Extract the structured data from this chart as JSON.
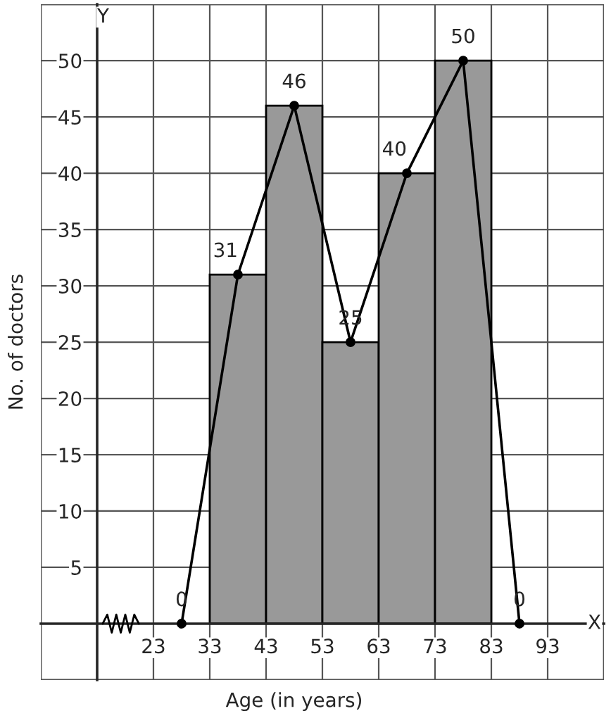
{
  "chart_data": {
    "type": "histogram",
    "xlabel": "Age (in years)",
    "ylabel": "No. of doctors",
    "bins": [
      33,
      43,
      53,
      63,
      73,
      83
    ],
    "values": [
      31,
      46,
      25,
      40,
      50
    ],
    "color": "#999999",
    "series": [
      {
        "type": "line",
        "x": [
          28,
          38,
          48,
          58,
          68,
          78,
          88
        ],
        "values": [
          0,
          31,
          46,
          25,
          40,
          50,
          0
        ],
        "color": "#000000",
        "marker": "circle",
        "value_labels": [
          "0",
          "31",
          "46",
          "25",
          "40",
          "50",
          "0"
        ]
      }
    ],
    "xlim": [
      3,
      103
    ],
    "ylim": [
      -5,
      55
    ],
    "xticks": [
      23,
      33,
      43,
      53,
      63,
      73,
      83,
      93
    ],
    "yticks": [
      5,
      10,
      15,
      20,
      25,
      30,
      35,
      40,
      45,
      50
    ],
    "annotations": [
      "Y",
      "X"
    ],
    "grid": true
  }
}
